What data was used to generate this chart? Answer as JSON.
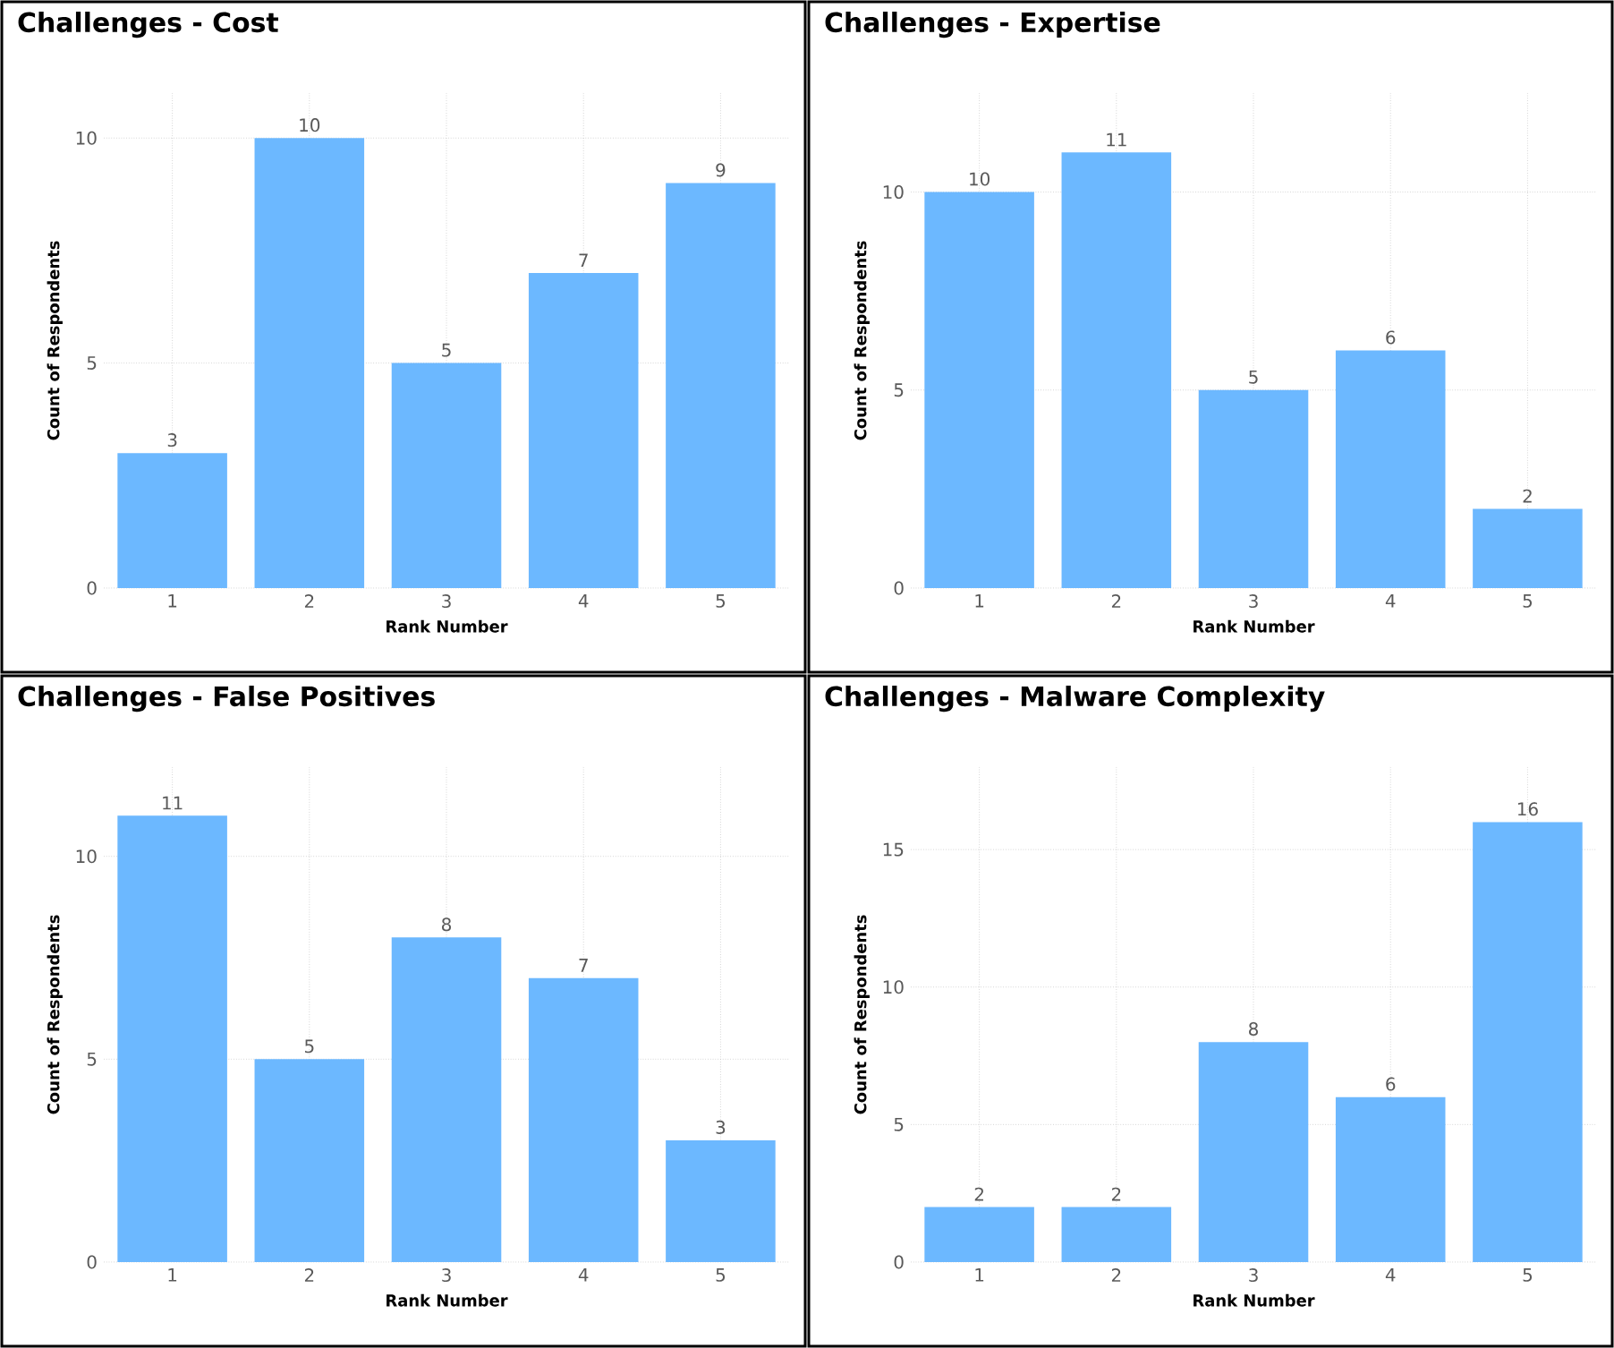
{
  "chart_data": [
    {
      "type": "bar",
      "title": "Challenges - Cost",
      "xlabel": "Rank Number",
      "ylabel": "Count of Respondents",
      "categories": [
        "1",
        "2",
        "3",
        "4",
        "5"
      ],
      "values": [
        3,
        10,
        5,
        7,
        9
      ],
      "color": "#6cb8ff",
      "ylim": [
        0,
        11
      ],
      "yticks": [
        0,
        5,
        10
      ],
      "grid": true,
      "data_labels": true
    },
    {
      "type": "bar",
      "title": "Challenges - Expertise",
      "xlabel": "Rank Number",
      "ylabel": "Count of Respondents",
      "categories": [
        "1",
        "2",
        "3",
        "4",
        "5"
      ],
      "values": [
        10,
        11,
        5,
        6,
        2
      ],
      "color": "#6cb8ff",
      "ylim": [
        0,
        12.5
      ],
      "yticks": [
        0,
        5,
        10
      ],
      "grid": true,
      "data_labels": true
    },
    {
      "type": "bar",
      "title": "Challenges - False Positives",
      "xlabel": "Rank Number",
      "ylabel": "Count of Respondents",
      "categories": [
        "1",
        "2",
        "3",
        "4",
        "5"
      ],
      "values": [
        11,
        5,
        8,
        7,
        3
      ],
      "color": "#6cb8ff",
      "ylim": [
        0,
        12.2
      ],
      "yticks": [
        0,
        5,
        10
      ],
      "grid": true,
      "data_labels": true
    },
    {
      "type": "bar",
      "title": "Challenges - Malware Complexity",
      "xlabel": "Rank Number",
      "ylabel": "Count of Respondents",
      "categories": [
        "1",
        "2",
        "3",
        "4",
        "5"
      ],
      "values": [
        2,
        2,
        8,
        6,
        16
      ],
      "color": "#6cb8ff",
      "ylim": [
        0,
        18
      ],
      "yticks": [
        0,
        5,
        10,
        15
      ],
      "grid": true,
      "data_labels": true
    }
  ]
}
